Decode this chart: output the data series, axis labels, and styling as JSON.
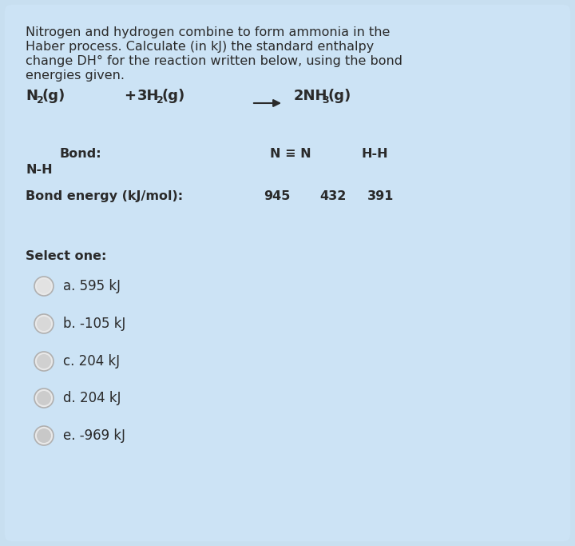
{
  "bg_color": "#c8dff0",
  "card_bg": "#cce3f5",
  "text_color": "#2a2a2a",
  "title_lines": [
    "Nitrogen and hydrogen combine to form ammonia in the",
    "Haber process. Calculate (in kJ) the standard enthalpy",
    "change DH° for the reaction written below, using the bond",
    "energies given."
  ],
  "bond_label": "Bond:",
  "bond1": "N ≡ N",
  "bond2": "H-H",
  "bond3": "N-H",
  "energy_label": "Bond energy (kJ/mol):",
  "energy1": "945",
  "energy2": "432",
  "energy3": "391",
  "select_label": "Select one:",
  "options": [
    "a. 595 kJ",
    "b. -105 kJ",
    "c. 204 kJ",
    "d. 204 kJ",
    "e. -969 kJ"
  ],
  "radio_outer_color": "#e8e8e8",
  "radio_inner_shades": [
    "#e2e2e2",
    "#d8d8d8",
    "#d0d0d0",
    "#cccccc",
    "#c8c8c8"
  ],
  "radio_edge_color": "#b0b0b0",
  "font_size_title": 11.5,
  "font_size_reaction": 13,
  "font_size_body": 11.5,
  "font_size_options": 12,
  "font_size_select": 11.5
}
